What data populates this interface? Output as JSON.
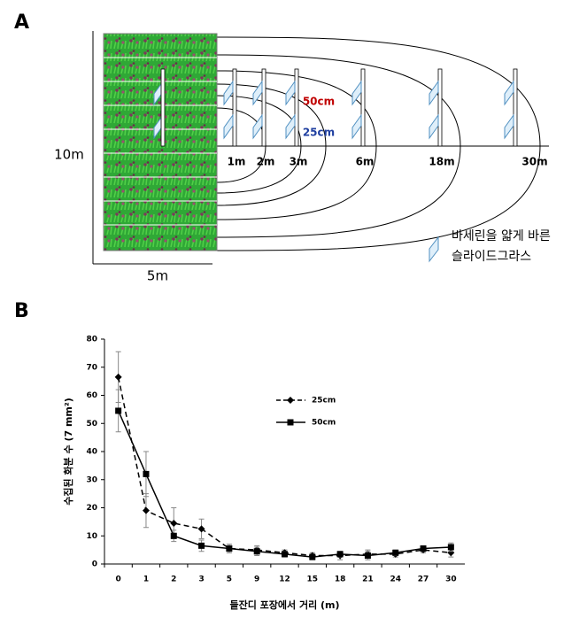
{
  "panel_a": {
    "label": "A",
    "height_label": "10m",
    "width_label": "5m",
    "distances": [
      "1m",
      "2m",
      "3m",
      "6m",
      "18m",
      "30m"
    ],
    "height_50": "50cm",
    "height_25": "25cm",
    "legend_lines": [
      "바세린을 얇게 바른",
      "슬라이드그라스"
    ]
  },
  "panel_b": {
    "label": "B"
  },
  "chart_data": {
    "type": "line",
    "x_label": "들잔디 포장에서 거리 (m)",
    "y_label": "수집된 화분 수 (7 mm²)",
    "categories": [
      "0",
      "1",
      "2",
      "3",
      "5",
      "9",
      "12",
      "15",
      "18",
      "21",
      "24",
      "27",
      "30"
    ],
    "series": [
      {
        "name": "25cm",
        "color": "#000000",
        "marker": "diamond",
        "line_style": "dashed",
        "values": [
          66.5,
          19,
          14.5,
          12.5,
          5.5,
          5,
          4,
          3,
          3,
          3.5,
          3.5,
          5,
          4
        ],
        "errors": [
          9,
          6,
          5.5,
          3.5,
          1.5,
          1.5,
          1,
          1,
          1.5,
          1.5,
          1,
          1,
          1.5
        ]
      },
      {
        "name": "50cm",
        "color": "#000000",
        "marker": "square",
        "line_style": "solid",
        "values": [
          54.5,
          32,
          10,
          6.5,
          5.5,
          4.5,
          3.5,
          2.5,
          3.5,
          3,
          4,
          5.5,
          6
        ],
        "errors": [
          7.5,
          8,
          2,
          2,
          1.5,
          1.5,
          1,
          1,
          1,
          1.5,
          1,
          1,
          1.5
        ]
      }
    ],
    "ylim": [
      0,
      80
    ],
    "yticks": [
      0,
      10,
      20,
      30,
      40,
      50,
      60,
      70,
      80
    ],
    "grid": false
  }
}
